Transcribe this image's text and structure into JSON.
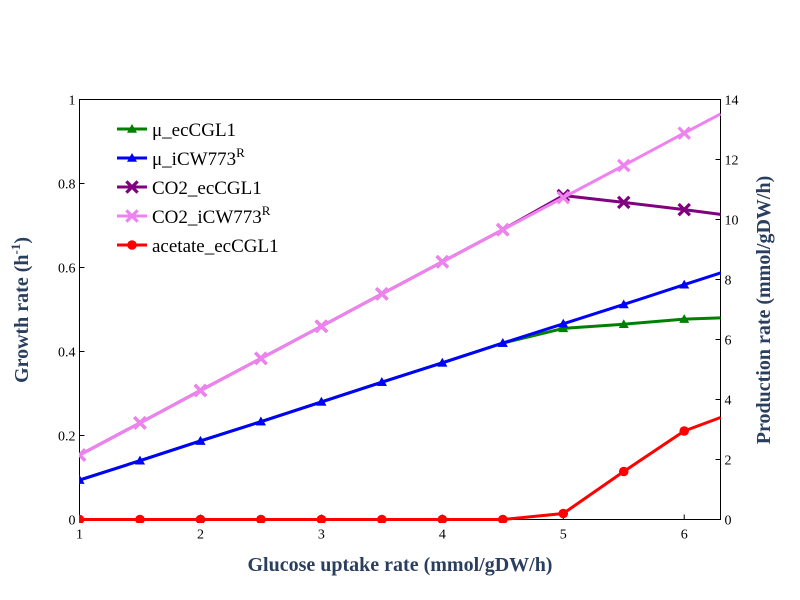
{
  "chart_data": {
    "type": "line",
    "title": "",
    "xlabel": "Glucose uptake rate (mmol/gDW/h)",
    "ylabel_left": "Growth rate (h-1)",
    "ylabel_left_parts": {
      "base": "Growth rate (h",
      "sup": "-1",
      "tail": ")"
    },
    "ylabel_right": "Production rate (mmol/gDW/h)",
    "xlim": [
      1,
      6.3
    ],
    "ylim_left": [
      0,
      1
    ],
    "ylim_right": [
      0,
      14
    ],
    "x_ticks": [
      1,
      2,
      3,
      4,
      5,
      6
    ],
    "y_left_ticks": [
      0,
      0.2,
      0.4,
      0.6,
      0.8,
      1
    ],
    "y_right_ticks": [
      0,
      2,
      4,
      6,
      8,
      10,
      12,
      14
    ],
    "grid": false,
    "legend_position": "top-left",
    "series": [
      {
        "name": "μ_ecCGL1",
        "base": "μ_ecCGL1",
        "sup": "",
        "axis": "left",
        "color": "#008000",
        "marker": "triangle",
        "x": [
          1,
          1.5,
          2,
          2.5,
          3,
          3.5,
          4,
          4.5,
          5,
          5.5,
          6,
          6.3
        ],
        "y": [
          0.094,
          0.14,
          0.187,
          0.233,
          0.28,
          0.327,
          0.373,
          0.42,
          0.455,
          0.465,
          0.477,
          0.48
        ]
      },
      {
        "name": "μ_iCW773R",
        "base": "μ_iCW773",
        "sup": "R",
        "axis": "left",
        "color": "#0000ff",
        "marker": "triangle",
        "x": [
          1,
          1.5,
          2,
          2.5,
          3,
          3.5,
          4,
          4.5,
          5,
          5.5,
          6,
          6.3
        ],
        "y": [
          0.094,
          0.14,
          0.187,
          0.233,
          0.28,
          0.327,
          0.373,
          0.42,
          0.466,
          0.512,
          0.559,
          0.587
        ]
      },
      {
        "name": "CO2_ecCGL1",
        "base": "CO2_ecCGL1",
        "sup": "",
        "axis": "right",
        "color": "#800080",
        "marker": "x",
        "x": [
          1,
          1.5,
          2,
          2.5,
          3,
          3.5,
          4,
          4.5,
          5,
          5.5,
          6,
          6.3
        ],
        "y": [
          2.15,
          3.22,
          4.3,
          5.37,
          6.44,
          7.52,
          8.59,
          9.66,
          10.8,
          10.57,
          10.33,
          10.17
        ]
      },
      {
        "name": "CO2_iCW773R",
        "base": "CO2_iCW773",
        "sup": "R",
        "axis": "right",
        "color": "#ee82ee",
        "marker": "x",
        "x": [
          1,
          1.5,
          2,
          2.5,
          3,
          3.5,
          4,
          4.5,
          5,
          5.5,
          6,
          6.3
        ],
        "y": [
          2.15,
          3.22,
          4.3,
          5.37,
          6.44,
          7.52,
          8.59,
          9.66,
          10.73,
          11.8,
          12.88,
          13.52
        ]
      },
      {
        "name": "acetate_ecCGL1",
        "base": "acetate_ecCGL1",
        "sup": "",
        "axis": "right",
        "color": "#ff0000",
        "marker": "circle",
        "x": [
          1,
          1.5,
          2,
          2.5,
          3,
          3.5,
          4,
          4.5,
          5,
          5.5,
          6,
          6.3
        ],
        "y": [
          0,
          0,
          0,
          0,
          0,
          0,
          0,
          0,
          0.2,
          1.6,
          2.95,
          3.4
        ]
      }
    ]
  }
}
